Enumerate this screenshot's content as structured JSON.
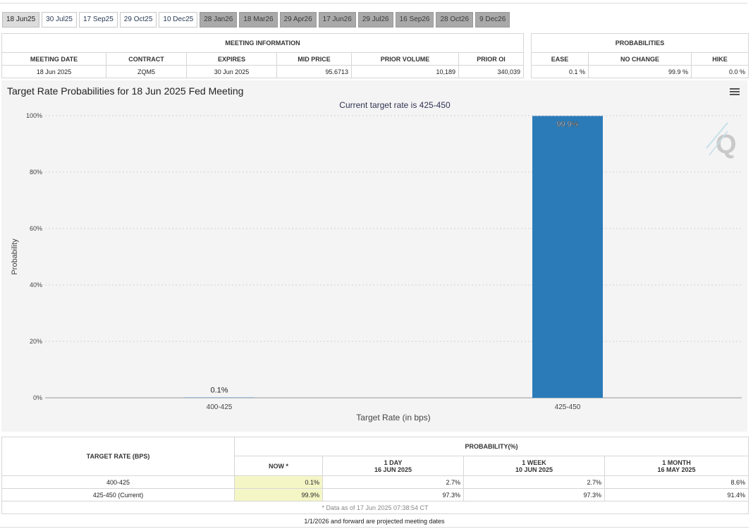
{
  "tabs": [
    {
      "label": "18 Jun25",
      "state": "active"
    },
    {
      "label": "30 Jul25",
      "state": "normal"
    },
    {
      "label": "17 Sep25",
      "state": "normal"
    },
    {
      "label": "29 Oct25",
      "state": "normal"
    },
    {
      "label": "10 Dec25",
      "state": "normal"
    },
    {
      "label": "28 Jan26",
      "state": "future"
    },
    {
      "label": "18 Mar26",
      "state": "future"
    },
    {
      "label": "29 Apr26",
      "state": "future"
    },
    {
      "label": "17 Jun26",
      "state": "future"
    },
    {
      "label": "29 Jul26",
      "state": "future"
    },
    {
      "label": "16 Sep26",
      "state": "future"
    },
    {
      "label": "28 Oct26",
      "state": "future"
    },
    {
      "label": "9 Dec26",
      "state": "future"
    }
  ],
  "meeting_info": {
    "title": "MEETING INFORMATION",
    "headers": [
      "MEETING DATE",
      "CONTRACT",
      "EXPIRES",
      "MID PRICE",
      "PRIOR VOLUME",
      "PRIOR OI"
    ],
    "row": [
      "18 Jun 2025",
      "ZQM5",
      "30 Jun 2025",
      "95.6713",
      "10,189",
      "340,039"
    ]
  },
  "probabilities": {
    "title": "PROBABILITIES",
    "headers": [
      "EASE",
      "NO CHANGE",
      "HIKE"
    ],
    "row": [
      "0.1 %",
      "99.9 %",
      "0.0 %"
    ]
  },
  "chart_data": {
    "type": "bar",
    "title": "Target Rate Probabilities for 18 Jun 2025 Fed Meeting",
    "subtitle": "Current target rate is 425-450",
    "xlabel": "Target Rate (in bps)",
    "ylabel": "Probability",
    "categories": [
      "400-425",
      "425-450"
    ],
    "values": [
      0.1,
      99.9
    ],
    "data_labels": [
      "0.1%",
      "99.9%"
    ],
    "ylim": [
      0,
      100
    ],
    "yticks": [
      "0%",
      "20%",
      "40%",
      "60%",
      "80%",
      "100%"
    ],
    "grid": true,
    "bar_color": "#2b7bb9"
  },
  "prob_table": {
    "col_header_rate": "TARGET RATE (BPS)",
    "col_header_prob": "PROBABILITY(%)",
    "now": "NOW *",
    "day_label": "1 DAY",
    "day_date": "16 JUN 2025",
    "week_label": "1 WEEK",
    "week_date": "10 JUN 2025",
    "month_label": "1 MONTH",
    "month_date": "16 MAY 2025",
    "rows": [
      {
        "rate": "400-425",
        "now": "0.1%",
        "day": "2.7%",
        "week": "2.7%",
        "month": "8.6%"
      },
      {
        "rate": "425-450 (Current)",
        "now": "99.9%",
        "day": "97.3%",
        "week": "97.3%",
        "month": "91.4%"
      }
    ],
    "footnote": "* Data as of 17 Jun 2025 07:38:54 CT"
  },
  "projection_note": "1/1/2026 and forward are projected meeting dates"
}
